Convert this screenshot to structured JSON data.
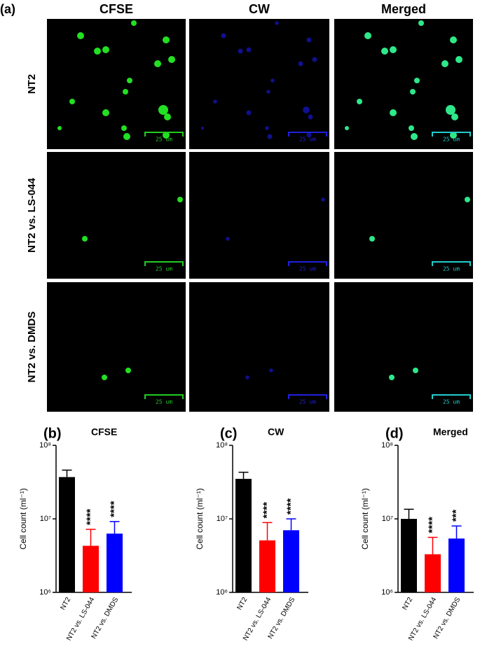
{
  "panel_label": "(a)",
  "micrographs": {
    "columns": [
      "CFSE",
      "CW",
      "Merged"
    ],
    "rows": [
      "NT2",
      "NT2 vs. LS-044",
      "NT2 vs. DMDS"
    ],
    "scale_bar_label": "25 um"
  },
  "chart_data": [
    {
      "type": "bar",
      "panel_label": "(b)",
      "title": "CFSE",
      "y_label": "Cell count (ml⁻¹)",
      "categories": [
        "NT2",
        "NT2 vs. LS-044",
        "NT2 vs. DMDS"
      ],
      "values": [
        37000000,
        4300000,
        6300000
      ],
      "errors": [
        9000000,
        2900000,
        2900000
      ],
      "colors": [
        "#000000",
        "#ff0000",
        "#0000ff"
      ],
      "annotations": [
        null,
        "****",
        "****"
      ],
      "log_scale": true,
      "ylim": [
        1000000,
        100000000
      ],
      "yticks": [
        {
          "value": 1000000,
          "label": "10⁶"
        },
        {
          "value": 10000000,
          "label": "10⁷"
        },
        {
          "value": 100000000,
          "label": "10⁸"
        }
      ]
    },
    {
      "type": "bar",
      "panel_label": "(c)",
      "title": "CW",
      "y_label": "Cell count (ml⁻¹)",
      "categories": [
        "NT2",
        "NT2 vs. LS-044",
        "NT2 vs. DMDS"
      ],
      "values": [
        35000000,
        5100000,
        7000000
      ],
      "errors": [
        8000000,
        3800000,
        3000000
      ],
      "colors": [
        "#000000",
        "#ff0000",
        "#0000ff"
      ],
      "annotations": [
        null,
        "****",
        "****"
      ],
      "log_scale": true,
      "ylim": [
        1000000,
        100000000
      ],
      "yticks": [
        {
          "value": 1000000,
          "label": "10⁶"
        },
        {
          "value": 10000000,
          "label": "10⁷"
        },
        {
          "value": 100000000,
          "label": "10⁸"
        }
      ]
    },
    {
      "type": "bar",
      "panel_label": "(d)",
      "title": "Merged",
      "y_label": "Cell count (ml⁻¹)",
      "categories": [
        "NT2",
        "NT2 vs. LS-044",
        "NT2 vs. DMDS"
      ],
      "values": [
        10000000,
        3300000,
        5400000
      ],
      "errors": [
        3500000,
        2300000,
        2600000
      ],
      "colors": [
        "#000000",
        "#ff0000",
        "#0000ff"
      ],
      "annotations": [
        null,
        "****",
        "***"
      ],
      "log_scale": true,
      "ylim": [
        1000000,
        100000000
      ],
      "yticks": [
        {
          "value": 1000000,
          "label": "10⁶"
        },
        {
          "value": 10000000,
          "label": "10⁷"
        },
        {
          "value": 100000000,
          "label": "10⁸"
        }
      ]
    }
  ]
}
